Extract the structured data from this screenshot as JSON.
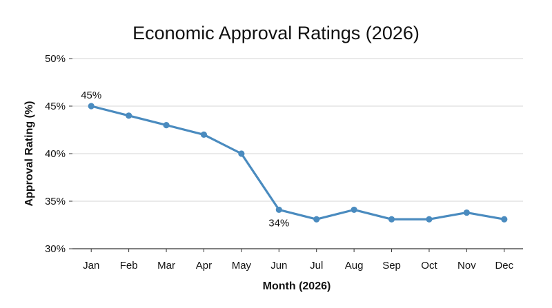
{
  "chart_data": {
    "type": "line",
    "title": "Economic Approval Ratings (2026)",
    "xlabel": "Month (2026)",
    "ylabel": "Approval Rating (%)",
    "categories": [
      "Jan",
      "Feb",
      "Mar",
      "Apr",
      "May",
      "Jun",
      "Jul",
      "Aug",
      "Sep",
      "Oct",
      "Nov",
      "Dec"
    ],
    "series": [
      {
        "values": [
          45,
          44,
          43,
          42,
          40,
          34.1,
          33.1,
          34.1,
          33.1,
          33.1,
          33.8,
          33.1
        ]
      }
    ],
    "ylim": [
      30,
      50
    ],
    "yticks": [
      30,
      35,
      40,
      45,
      50
    ],
    "ytick_labels": [
      "30%",
      "35%",
      "40%",
      "45%",
      "50%"
    ],
    "annotations": [
      {
        "category": "Jan",
        "text": "45%",
        "position": "above"
      },
      {
        "category": "Jun",
        "text": "34%",
        "position": "below"
      }
    ],
    "grid": "horizontal",
    "line_color": "#4a8bbf"
  }
}
